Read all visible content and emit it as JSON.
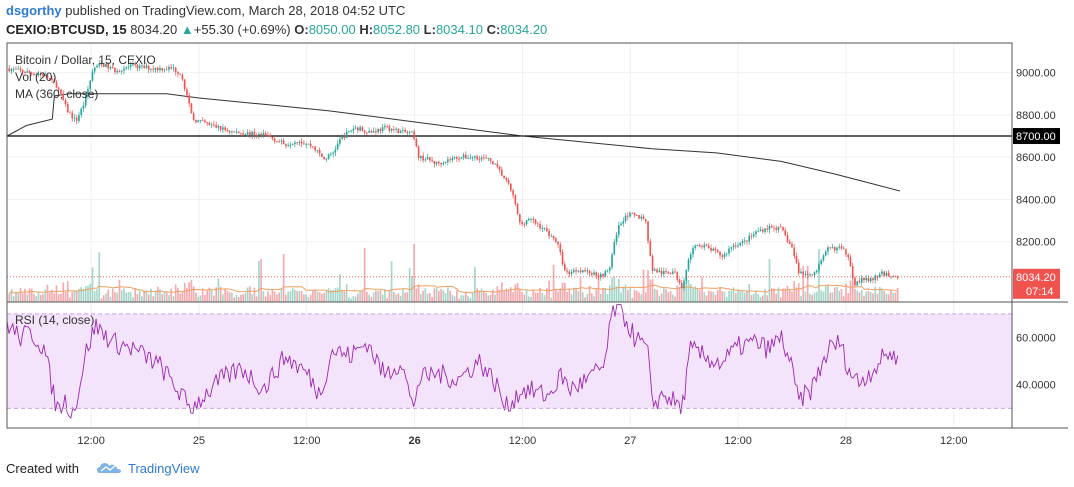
{
  "header": {
    "author": "dsgorthy",
    "published_text": "published on TradingView.com, March 28, 2018 04:52 UTC",
    "symbol": "CEXIO:BTCUSD, 15",
    "last": "8034.20",
    "change_arrow": "▲",
    "change": "+55.30 (+0.69%)",
    "o_label": "O:",
    "o_value": "8050.00",
    "h_label": "H:",
    "h_value": "8052.80",
    "l_label": "L:",
    "l_value": "8034.10",
    "c_label": "C:",
    "c_value": "8034.20"
  },
  "footer": {
    "created_with": "Created with",
    "brand": "TradingView"
  },
  "colors": {
    "up": "#26a69a",
    "down": "#ef5350",
    "vol_up": "#a5d6c9",
    "vol_down": "#f5a9ad",
    "ma": "#333333",
    "vol_ma": "#f0a060",
    "rsi_line": "#9c27b0",
    "rsi_band": "#f3e3fb",
    "hline": "#000000",
    "price_tag": "#ef5350"
  },
  "chart_data": [
    {
      "type": "candlestick",
      "legend": [
        "Bitcoin / Dollar, 15, CEXIO",
        "Vol (20)",
        "MA (360, close)"
      ],
      "y_ticks": [
        9000,
        8800,
        8600,
        8400,
        8200
      ],
      "y_tick_labels": [
        "9000.00",
        "8800.00",
        "8600.00",
        "8400.00",
        "8200.00"
      ],
      "ylim": [
        7915,
        9140
      ],
      "x_ticks": [
        {
          "t": 0.6,
          "label": "12:00",
          "bold": false
        },
        {
          "t": 1.1,
          "label": "25",
          "bold": false
        },
        {
          "t": 1.6,
          "label": "12:00",
          "bold": false
        },
        {
          "t": 2.1,
          "label": "26",
          "bold": true
        },
        {
          "t": 2.6,
          "label": "12:00",
          "bold": false
        },
        {
          "t": 3.1,
          "label": "27",
          "bold": false
        },
        {
          "t": 3.6,
          "label": "12:00",
          "bold": false
        },
        {
          "t": 4.1,
          "label": "28",
          "bold": false
        },
        {
          "t": 4.6,
          "label": "12:00",
          "bold": false
        }
      ],
      "xlim": [
        0.21,
        4.87
      ],
      "horizontal_line": {
        "value": 8700,
        "label": "8700.00"
      },
      "last_price": {
        "value": 8034.2,
        "label": "8034.20",
        "countdown": "07:14"
      },
      "price_path": [
        [
          0.21,
          9020
        ],
        [
          0.31,
          9000
        ],
        [
          0.38,
          8990
        ],
        [
          0.44,
          8940
        ],
        [
          0.49,
          8820
        ],
        [
          0.53,
          8770
        ],
        [
          0.57,
          8860
        ],
        [
          0.61,
          9020
        ],
        [
          0.65,
          9040
        ],
        [
          0.71,
          9010
        ],
        [
          0.79,
          9030
        ],
        [
          0.88,
          9020
        ],
        [
          0.98,
          9020
        ],
        [
          1.02,
          8990
        ],
        [
          1.07,
          8780
        ],
        [
          1.13,
          8760
        ],
        [
          1.19,
          8740
        ],
        [
          1.25,
          8720
        ],
        [
          1.35,
          8710
        ],
        [
          1.42,
          8700
        ],
        [
          1.5,
          8660
        ],
        [
          1.56,
          8680
        ],
        [
          1.63,
          8650
        ],
        [
          1.68,
          8590
        ],
        [
          1.72,
          8620
        ],
        [
          1.76,
          8690
        ],
        [
          1.82,
          8740
        ],
        [
          1.9,
          8720
        ],
        [
          1.97,
          8740
        ],
        [
          2.04,
          8720
        ],
        [
          2.09,
          8710
        ],
        [
          2.12,
          8600
        ],
        [
          2.16,
          8590
        ],
        [
          2.2,
          8570
        ],
        [
          2.3,
          8600
        ],
        [
          2.4,
          8600
        ],
        [
          2.46,
          8580
        ],
        [
          2.51,
          8510
        ],
        [
          2.55,
          8440
        ],
        [
          2.59,
          8280
        ],
        [
          2.63,
          8310
        ],
        [
          2.7,
          8260
        ],
        [
          2.76,
          8200
        ],
        [
          2.8,
          8050
        ],
        [
          2.86,
          8070
        ],
        [
          2.96,
          8040
        ],
        [
          3.0,
          8060
        ],
        [
          3.04,
          8260
        ],
        [
          3.08,
          8330
        ],
        [
          3.13,
          8320
        ],
        [
          3.17,
          8310
        ],
        [
          3.2,
          8070
        ],
        [
          3.25,
          8050
        ],
        [
          3.3,
          8060
        ],
        [
          3.34,
          7990
        ],
        [
          3.38,
          8150
        ],
        [
          3.42,
          8190
        ],
        [
          3.48,
          8160
        ],
        [
          3.53,
          8130
        ],
        [
          3.57,
          8180
        ],
        [
          3.63,
          8200
        ],
        [
          3.69,
          8250
        ],
        [
          3.75,
          8270
        ],
        [
          3.8,
          8260
        ],
        [
          3.85,
          8170
        ],
        [
          3.88,
          8060
        ],
        [
          3.92,
          8040
        ],
        [
          3.96,
          8060
        ],
        [
          4.02,
          8170
        ],
        [
          4.07,
          8170
        ],
        [
          4.11,
          8140
        ],
        [
          4.14,
          8000
        ],
        [
          4.17,
          8020
        ],
        [
          4.22,
          8020
        ],
        [
          4.27,
          8050
        ],
        [
          4.31,
          8040
        ],
        [
          4.34,
          8034.2
        ]
      ],
      "ma_path": [
        [
          0.21,
          8700
        ],
        [
          0.3,
          8750
        ],
        [
          0.42,
          8780
        ],
        [
          0.43,
          8890
        ],
        [
          0.5,
          8900
        ],
        [
          0.7,
          8900
        ],
        [
          0.95,
          8900
        ],
        [
          1.1,
          8880
        ],
        [
          1.4,
          8850
        ],
        [
          1.7,
          8820
        ],
        [
          2.0,
          8780
        ],
        [
          2.3,
          8740
        ],
        [
          2.6,
          8700
        ],
        [
          2.9,
          8670
        ],
        [
          3.2,
          8640
        ],
        [
          3.5,
          8620
        ],
        [
          3.8,
          8580
        ],
        [
          4.05,
          8520
        ],
        [
          4.2,
          8480
        ],
        [
          4.35,
          8440
        ]
      ]
    },
    {
      "type": "line",
      "legend": [
        "RSI (14, close)"
      ],
      "y_ticks": [
        60,
        40
      ],
      "y_tick_labels": [
        "60.0000",
        "40.0000"
      ],
      "ylim": [
        21.7,
        75
      ],
      "band": [
        30,
        70
      ],
      "x": [
        0.21,
        0.27,
        0.32,
        0.38,
        0.44,
        0.48,
        0.52,
        0.58,
        0.62,
        0.7,
        0.8,
        0.92,
        1.0,
        1.06,
        1.12,
        1.2,
        1.3,
        1.4,
        1.5,
        1.6,
        1.66,
        1.72,
        1.8,
        1.88,
        1.96,
        2.04,
        2.09,
        2.12,
        2.2,
        2.3,
        2.4,
        2.48,
        2.52,
        2.56,
        2.6,
        2.66,
        2.72,
        2.78,
        2.82,
        2.9,
        2.98,
        3.02,
        3.06,
        3.12,
        3.18,
        3.2,
        3.26,
        3.34,
        3.38,
        3.44,
        3.52,
        3.6,
        3.68,
        3.74,
        3.8,
        3.84,
        3.88,
        3.94,
        4.02,
        4.07,
        4.12,
        4.16,
        4.22,
        4.3,
        4.34
      ],
      "values": [
        66,
        60,
        62,
        56,
        30,
        33,
        28,
        55,
        65,
        58,
        55,
        48,
        38,
        30,
        35,
        42,
        47,
        38,
        52,
        45,
        36,
        55,
        52,
        58,
        44,
        50,
        30,
        42,
        45,
        42,
        50,
        40,
        30,
        34,
        38,
        37,
        35,
        44,
        38,
        42,
        48,
        72,
        71,
        60,
        55,
        32,
        36,
        30,
        55,
        52,
        49,
        56,
        58,
        55,
        60,
        50,
        33,
        38,
        55,
        58,
        45,
        41,
        46,
        54,
        50
      ]
    }
  ]
}
